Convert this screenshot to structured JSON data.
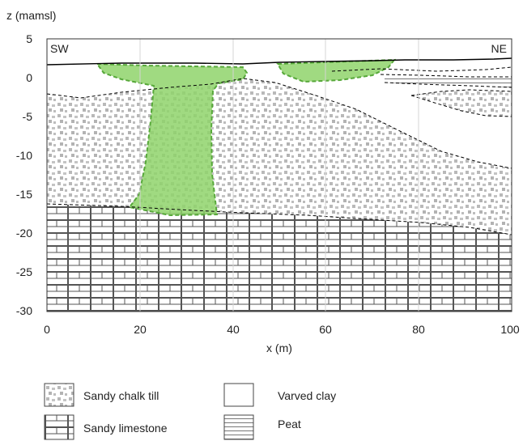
{
  "axis": {
    "y_title": "z (mamsl)",
    "x_title": "x (m)",
    "x_ticks": [
      "0",
      "20",
      "40",
      "60",
      "80",
      "100"
    ],
    "y_ticks": [
      "5",
      "0",
      "-5",
      "-10",
      "-15",
      "-20",
      "-25",
      "-30"
    ],
    "xlim": [
      0,
      100
    ],
    "ylim": [
      -30,
      5
    ]
  },
  "corner_labels": {
    "left": "SW",
    "right": "NE"
  },
  "legend": [
    {
      "label": "Sandy chalk till",
      "pattern": "chalk-till-pattern"
    },
    {
      "label": "Varved clay",
      "pattern": "none"
    },
    {
      "label": "Sandy limestone",
      "pattern": "limestone-pattern"
    },
    {
      "label": "Peat",
      "pattern": "peat-pattern"
    }
  ],
  "colors": {
    "green_fill": "#8fd46b",
    "green_stroke": "#57a83a",
    "pattern_gray": "#b9b9b9",
    "line": "#000000"
  }
}
